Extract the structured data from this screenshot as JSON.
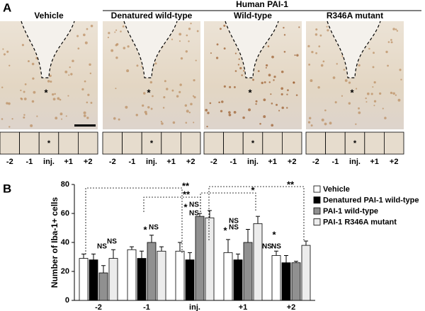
{
  "panel_a": {
    "label": "A",
    "header": "Human PAI-1",
    "columns": [
      "Vehicle",
      "Denatured wild-type",
      "Wild-type",
      "R346A mutant"
    ],
    "marker": "*",
    "strip_labels": [
      "-2",
      "-1",
      "inj.",
      "+1",
      "+2"
    ]
  },
  "chart_data": {
    "type": "bar",
    "panel_label": "B",
    "ylabel": "Number of Iba-1+ cells",
    "categories": [
      "-2",
      "-1",
      "inj.",
      "+1",
      "+2"
    ],
    "series": [
      {
        "name": "Vehicle",
        "color": "#ffffff",
        "values": [
          29,
          35,
          34,
          33,
          31
        ],
        "errors": [
          3,
          2,
          6,
          9,
          3
        ]
      },
      {
        "name": "Denatured PAI-1 wild-type",
        "color": "#000000",
        "values": [
          28,
          29,
          28,
          28,
          26
        ],
        "errors": [
          4,
          5,
          5,
          4,
          5
        ]
      },
      {
        "name": "PAI-1 wild-type",
        "color": "#909090",
        "values": [
          19,
          40,
          58,
          40,
          26
        ],
        "errors": [
          5,
          5,
          2,
          9,
          1
        ]
      },
      {
        "name": "PAI-1 R346A mutant",
        "color": "#ececec",
        "values": [
          29,
          34,
          57,
          53,
          38
        ],
        "errors": [
          6,
          3,
          5,
          5,
          3
        ]
      }
    ],
    "ylim": [
      0,
      80
    ],
    "yticks": [
      0,
      20,
      40,
      60,
      80
    ],
    "annotations": [
      "**",
      "**",
      "*",
      "**",
      "NS",
      "NS",
      "*",
      "NS",
      "*",
      "NS",
      "NS",
      "*",
      "NS",
      "NS",
      "*",
      "NS",
      "NS"
    ]
  }
}
